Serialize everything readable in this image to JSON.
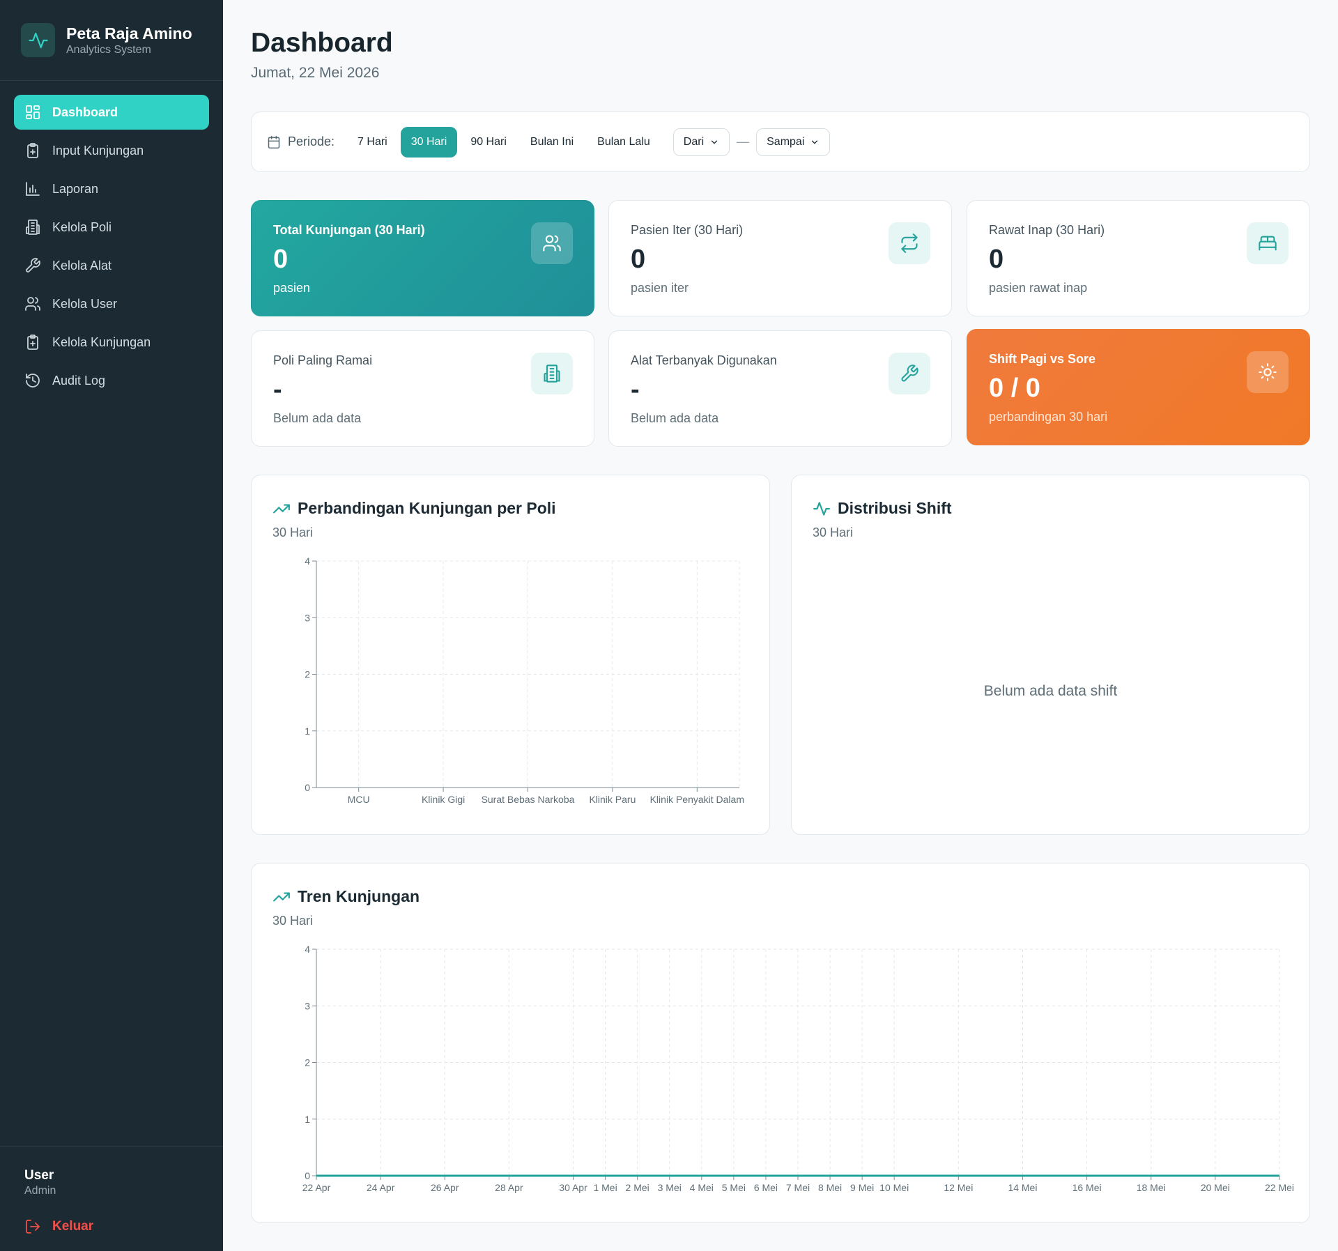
{
  "brand": {
    "title": "Peta Raja Amino",
    "subtitle": "Analytics System"
  },
  "sidebar": {
    "items": [
      {
        "label": "Dashboard",
        "icon": "grid-icon",
        "active": true
      },
      {
        "label": "Input Kunjungan",
        "icon": "clipboard-plus-icon"
      },
      {
        "label": "Laporan",
        "icon": "bar-chart-icon"
      },
      {
        "label": "Kelola Poli",
        "icon": "building-icon"
      },
      {
        "label": "Kelola Alat",
        "icon": "wrench-icon"
      },
      {
        "label": "Kelola User",
        "icon": "users-icon"
      },
      {
        "label": "Kelola Kunjungan",
        "icon": "clipboard-plus-icon"
      },
      {
        "label": "Audit Log",
        "icon": "history-icon"
      }
    ]
  },
  "user": {
    "name": "User",
    "role": "Admin",
    "logout_label": "Keluar"
  },
  "header": {
    "title": "Dashboard",
    "date": "Jumat, 22 Mei 2026"
  },
  "period": {
    "label": "Periode:",
    "options": [
      "7 Hari",
      "30 Hari",
      "90 Hari",
      "Bulan Ini",
      "Bulan Lalu"
    ],
    "selected": "30 Hari",
    "from_label": "Dari",
    "to_label": "Sampai",
    "separator": "—"
  },
  "stats": {
    "total": {
      "title": "Total Kunjungan (30 Hari)",
      "value": "0",
      "sub": "pasien",
      "icon": "users-icon"
    },
    "iter": {
      "title": "Pasien Iter (30 Hari)",
      "value": "0",
      "sub": "pasien iter",
      "icon": "repeat-icon"
    },
    "inap": {
      "title": "Rawat Inap (30 Hari)",
      "value": "0",
      "sub": "pasien rawat inap",
      "icon": "bed-icon"
    },
    "poli": {
      "title": "Poli Paling Ramai",
      "value": "-",
      "sub": "Belum ada data",
      "icon": "building-icon"
    },
    "alat": {
      "title": "Alat Terbanyak Digunakan",
      "value": "-",
      "sub": "Belum ada data",
      "icon": "wrench-icon"
    },
    "shift": {
      "title": "Shift Pagi vs Sore",
      "value": "0 / 0",
      "sub": "perbandingan 30 hari",
      "icon": "sun-icon"
    }
  },
  "colors": {
    "accent": "#23a39b",
    "sidebar": "#1c2a33",
    "orange": "#f07a3c",
    "active_nav": "#30d2c5"
  },
  "panels": {
    "poli": {
      "title": "Perbandingan Kunjungan per Poli",
      "subtitle": "30 Hari"
    },
    "shift": {
      "title": "Distribusi Shift",
      "subtitle": "30 Hari",
      "empty": "Belum ada data shift"
    },
    "trend": {
      "title": "Tren Kunjungan",
      "subtitle": "30 Hari"
    }
  },
  "chart_data": [
    {
      "type": "bar",
      "categories": [
        "MCU",
        "Klinik Gigi",
        "Surat Bebas Narkoba",
        "Klinik Paru",
        "Klinik Penyakit Dalam"
      ],
      "values": [
        0,
        0,
        0,
        0,
        0
      ],
      "yticks": [
        "0",
        "1",
        "2",
        "3",
        "4"
      ],
      "ylim": [
        0,
        4
      ],
      "grid": true
    },
    {
      "type": "line",
      "x": [
        "22 Apr",
        "24 Apr",
        "26 Apr",
        "28 Apr",
        "30 Apr",
        "1 Mei",
        "2 Mei",
        "3 Mei",
        "4 Mei",
        "5 Mei",
        "6 Mei",
        "7 Mei",
        "8 Mei",
        "9 Mei",
        "10 Mei",
        "12 Mei",
        "14 Mei",
        "16 Mei",
        "18 Mei",
        "20 Mei",
        "22 Mei"
      ],
      "values": [
        0,
        0,
        0,
        0,
        0,
        0,
        0,
        0,
        0,
        0,
        0,
        0,
        0,
        0,
        0,
        0,
        0,
        0,
        0,
        0,
        0
      ],
      "yticks": [
        "0",
        "1",
        "2",
        "3",
        "4"
      ],
      "ylim": [
        0,
        4
      ],
      "grid": true
    }
  ]
}
